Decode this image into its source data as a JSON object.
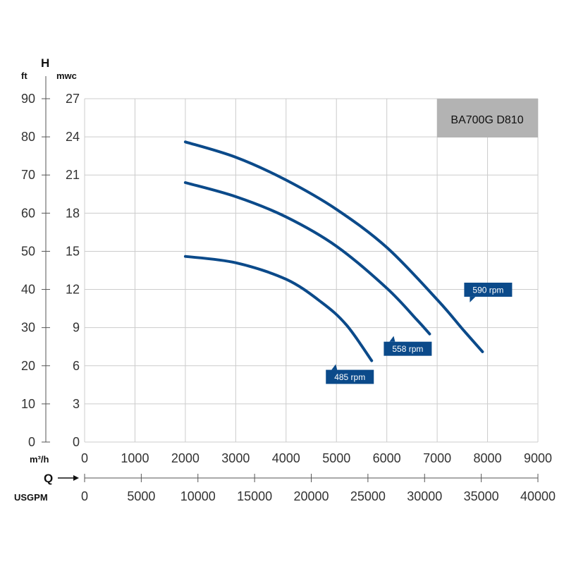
{
  "chart_data": {
    "type": "line",
    "model_label": "BA700G D810",
    "y_axis_title": "H",
    "y_unit_left": "ft",
    "y_unit_right": "mwc",
    "x_axis_title": "Q",
    "x_unit_top": "m³/h",
    "x_unit_bottom": "USGPM",
    "x_ticks_m3h": [
      "0",
      "1000",
      "2000",
      "3000",
      "4000",
      "5000",
      "6000",
      "7000",
      "8000",
      "9000"
    ],
    "x_ticks_usgpm": [
      "0",
      "5000",
      "10000",
      "15000",
      "20000",
      "25000",
      "30000",
      "35000",
      "40000"
    ],
    "y_ticks_mwc": [
      "0",
      "3",
      "6",
      "9",
      "12",
      "15",
      "18",
      "21",
      "24",
      "27"
    ],
    "y_ticks_ft": [
      "0",
      "10",
      "20",
      "30",
      "40",
      "50",
      "60",
      "70",
      "80",
      "90"
    ],
    "xlim": [
      0,
      9000
    ],
    "ylim": [
      0,
      27
    ],
    "usgpm_lim": [
      0,
      40000
    ],
    "ft_lim": [
      0,
      90
    ],
    "grid": true,
    "colors": {
      "curve": "#0b4a8a",
      "label_bg": "#0b4a8a",
      "model_bg": "#b3b3b3",
      "grid": "#cccccc"
    },
    "series": [
      {
        "name": "590 rpm",
        "points": [
          [
            2000,
            23.6
          ],
          [
            3000,
            22.4
          ],
          [
            4000,
            20.6
          ],
          [
            5000,
            18.3
          ],
          [
            6000,
            15.3
          ],
          [
            7000,
            11.2
          ],
          [
            7500,
            8.9
          ],
          [
            7900,
            7.1
          ]
        ]
      },
      {
        "name": "558 rpm",
        "points": [
          [
            2000,
            20.4
          ],
          [
            3000,
            19.3
          ],
          [
            4000,
            17.7
          ],
          [
            5000,
            15.4
          ],
          [
            6000,
            12.1
          ],
          [
            6600,
            9.6
          ],
          [
            6850,
            8.5
          ]
        ]
      },
      {
        "name": "485 rpm",
        "points": [
          [
            2000,
            14.6
          ],
          [
            3000,
            14.1
          ],
          [
            4000,
            12.8
          ],
          [
            4700,
            11.0
          ],
          [
            5200,
            9.2
          ],
          [
            5700,
            6.4
          ]
        ]
      }
    ]
  }
}
